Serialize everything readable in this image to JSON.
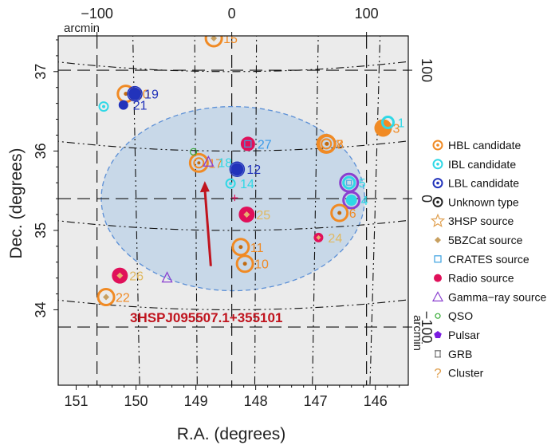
{
  "chart_data": {
    "type": "scatter",
    "x_axis": {
      "label": "R.A. (degrees)",
      "range": [
        151.3,
        145.45
      ],
      "reversed": true,
      "ticks": [
        "151",
        "150",
        "149",
        "148",
        "147",
        "146"
      ]
    },
    "y_axis": {
      "label": "Dec. (degrees)",
      "range": [
        33.05,
        37.45
      ],
      "ticks": [
        "34",
        "35",
        "36",
        "37"
      ]
    },
    "top_axis": {
      "label": "arcmin",
      "ticks": [
        "−100",
        "0",
        "100"
      ],
      "tick_values": [
        -100,
        0,
        100
      ]
    },
    "right_axis": {
      "label": "arcmin",
      "ticks": [
        "−100",
        "0",
        "100"
      ],
      "tick_values": [
        -100,
        0,
        100
      ]
    },
    "center": [
      148.4,
      35.4
    ],
    "background_color": "#ebebeb",
    "ellipse": {
      "center": [
        148.38,
        35.4
      ],
      "semi_axis_ra_deg": 2.2,
      "semi_axis_dec_deg": 1.16,
      "fill": "#c8d8e8",
      "stroke": "#5b8fd6"
    },
    "legend": [
      {
        "label": "HBL candidate",
        "symbol": "circle-dot",
        "color": "#f08a24"
      },
      {
        "label": "IBL candidate",
        "symbol": "circle-dot",
        "color": "#2fd8e6"
      },
      {
        "label": "LBL candidate",
        "symbol": "circle-dot",
        "color": "#2233bb"
      },
      {
        "label": "Unknown type",
        "symbol": "circle-dot",
        "color": "#222222"
      },
      {
        "label": "3HSP source",
        "symbol": "star",
        "color": "#e0a050"
      },
      {
        "label": "5BZCat source",
        "symbol": "diamond",
        "color": "#c8a060"
      },
      {
        "label": "CRATES source",
        "symbol": "square",
        "color": "#3aa0e0"
      },
      {
        "label": "Radio source",
        "symbol": "disc",
        "color": "#e0105a"
      },
      {
        "label": "Gamma−ray source",
        "symbol": "triangle",
        "color": "#8a3fd0"
      },
      {
        "label": "QSO",
        "symbol": "small-circle",
        "color": "#33aa33"
      },
      {
        "label": "Pulsar",
        "symbol": "pentagon",
        "color": "#7a1be0"
      },
      {
        "label": "GRB",
        "symbol": "hourglass",
        "color": "#666666"
      },
      {
        "label": "Cluster",
        "symbol": "question",
        "color": "#e0a050"
      }
    ],
    "annotation": {
      "text": "3HSPJ095507.1+355101",
      "color": "#c0141e",
      "from": [
        148.75,
        34.55
      ],
      "to": [
        148.85,
        35.62
      ]
    },
    "sources": [
      {
        "ra": 148.95,
        "dec": 35.85,
        "class": "HBL",
        "marker": "hbl-big",
        "label": "17",
        "label_color": "#f08a24"
      },
      {
        "ra": 148.79,
        "dec": 35.86,
        "class": "3HSP",
        "marker": "triangle",
        "label": "18",
        "label_color": "#2fd8e6"
      },
      {
        "ra": 149.04,
        "dec": 35.99,
        "class": "QSO",
        "marker": "qso",
        "label": "",
        "label_color": ""
      },
      {
        "ra": 148.31,
        "dec": 35.77,
        "class": "LBL",
        "marker": "lbl",
        "label": "12",
        "label_color": "#2233bb"
      },
      {
        "ra": 148.42,
        "dec": 35.59,
        "class": "IBL",
        "marker": "ibl-small",
        "label": "14",
        "label_color": "#2fd8e6"
      },
      {
        "ra": 148.13,
        "dec": 36.09,
        "class": "Radio",
        "marker": "radio-square",
        "label": "27",
        "label_color": "#3a9ae8"
      },
      {
        "ra": 148.35,
        "dec": 35.41,
        "class": "Radio",
        "marker": "cross",
        "label": "",
        "label_color": ""
      },
      {
        "ra": 148.15,
        "dec": 35.2,
        "class": "Radio",
        "marker": "radio-diamond",
        "label": "25",
        "label_color": "#e0b860"
      },
      {
        "ra": 148.25,
        "dec": 34.79,
        "class": "HBL",
        "marker": "hbl-dot",
        "label": "11",
        "label_color": "#f08a24"
      },
      {
        "ra": 148.18,
        "dec": 34.58,
        "class": "HBL",
        "marker": "hbl-dot",
        "label": "10",
        "label_color": "#f08a24"
      },
      {
        "ra": 148.7,
        "dec": 37.42,
        "class": "HBL",
        "marker": "hbl-diamond",
        "label": "15",
        "label_color": "#f08a24"
      },
      {
        "ra": 150.17,
        "dec": 36.72,
        "class": "HBL",
        "marker": "hbl-dot",
        "label": "20",
        "label_color": "#f08a24"
      },
      {
        "ra": 150.02,
        "dec": 36.72,
        "class": "LBL",
        "marker": "lbl",
        "label": "19",
        "label_color": "#2233bb"
      },
      {
        "ra": 150.21,
        "dec": 36.58,
        "class": "LBL",
        "marker": "lbl-small",
        "label": "21",
        "label_color": "#2233bb"
      },
      {
        "ra": 150.54,
        "dec": 36.56,
        "class": "IBL",
        "marker": "ibl-small",
        "label": "",
        "label_color": ""
      },
      {
        "ra": 146.82,
        "dec": 36.09,
        "class": "HBL",
        "marker": "hbl-big",
        "label": "7",
        "label_color": "#f08a24"
      },
      {
        "ra": 146.81,
        "dec": 36.09,
        "class": "HBL",
        "marker": "hbl-dot",
        "label": "8",
        "label_color": "#f08a24"
      },
      {
        "ra": 145.87,
        "dec": 36.29,
        "class": "HBL",
        "marker": "hbl-filled",
        "label": "3",
        "label_color": "#f08a24"
      },
      {
        "ra": 145.79,
        "dec": 36.36,
        "class": "IBL",
        "marker": "ibl",
        "label": "1",
        "label_color": "#2fd8e6"
      },
      {
        "ra": 146.44,
        "dec": 35.6,
        "class": "Gamma-ray",
        "marker": "ibl-gamma",
        "label": "5",
        "label_color": "#2fd8e6"
      },
      {
        "ra": 146.4,
        "dec": 35.38,
        "class": "IBL",
        "marker": "ibl-purple",
        "label": "4",
        "label_color": "#2fd8e6"
      },
      {
        "ra": 146.6,
        "dec": 35.22,
        "class": "HBL",
        "marker": "hbl-dot",
        "label": "6",
        "label_color": "#f08a24"
      },
      {
        "ra": 146.95,
        "dec": 34.91,
        "class": "Radio",
        "marker": "radio-small",
        "label": "24",
        "label_color": "#e0b860"
      },
      {
        "ra": 150.27,
        "dec": 34.43,
        "class": "Radio",
        "marker": "radio-diamond",
        "label": "26",
        "label_color": "#e0b860"
      },
      {
        "ra": 149.48,
        "dec": 34.4,
        "class": "Gamma-ray",
        "marker": "triangle",
        "label": "",
        "label_color": ""
      },
      {
        "ra": 150.5,
        "dec": 34.16,
        "class": "HBL",
        "marker": "hbl-diamond",
        "label": "22",
        "label_color": "#f08a24"
      }
    ]
  }
}
